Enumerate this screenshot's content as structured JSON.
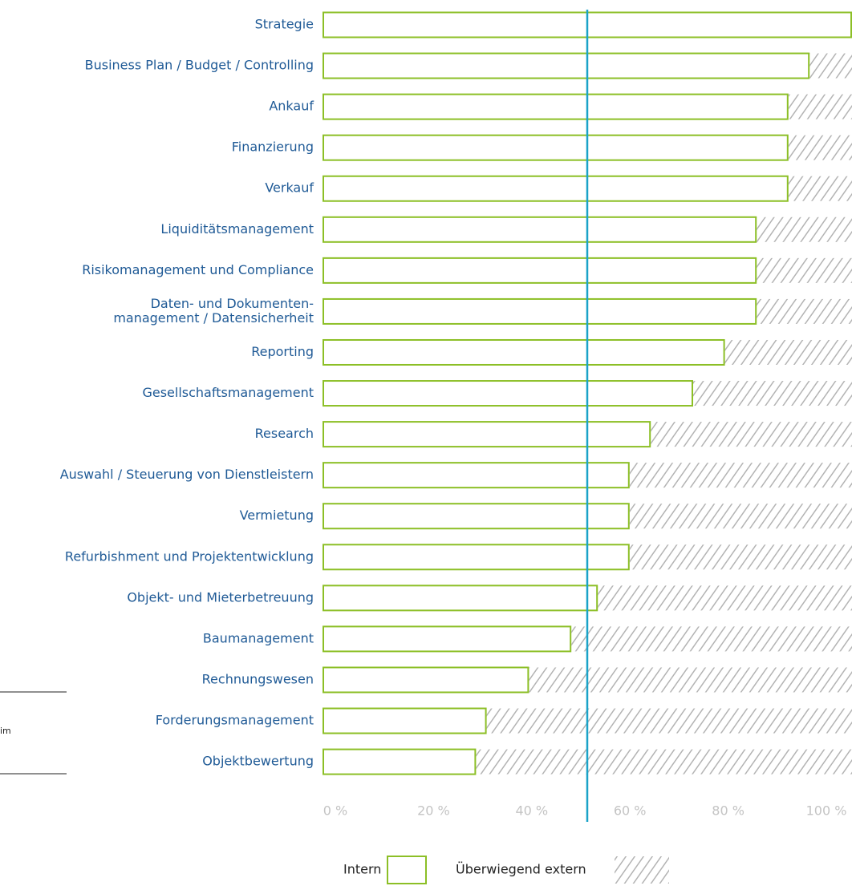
{
  "chart_data": {
    "type": "bar",
    "orientation": "horizontal",
    "stacked": true,
    "categories": [
      "Strategie",
      "Business Plan / Budget / Controlling",
      "Ankauf",
      "Finanzierung",
      "Verkauf",
      "Liquiditätsmanagement",
      "Risikomanagement und Compliance",
      [
        "Daten- und Dokumenten-",
        "management / Datensicherheit"
      ],
      "Reporting",
      "Gesellschaftsmanagement",
      "Research",
      "Auswahl / Steuerung von Dienstleistern",
      "Vermietung",
      "Refurbishment und Projektentwicklung",
      "Objekt- und Mieterbetreuung",
      "Baumanagement",
      "Rechnungswesen",
      "Forderungsmanagement",
      "Objektbewertung"
    ],
    "series": [
      {
        "name": "Intern",
        "color": "#8cbf26",
        "style": "outline",
        "values": [
          100,
          92,
          88,
          88,
          88,
          82,
          82,
          82,
          76,
          70,
          62,
          58,
          58,
          58,
          52,
          47,
          39,
          31,
          29
        ]
      },
      {
        "name": "Überwiegend extern",
        "color": "#b3b3b3",
        "style": "hatch",
        "values": [
          0,
          8,
          12,
          12,
          12,
          18,
          18,
          18,
          24,
          30,
          38,
          42,
          42,
          42,
          48,
          53,
          61,
          69,
          71
        ]
      }
    ],
    "xlim": [
      0,
      100
    ],
    "xticks": [
      {
        "value": 0,
        "label": "0 %"
      },
      {
        "value": 20,
        "label": "20 %"
      },
      {
        "value": 40,
        "label": "40 %"
      },
      {
        "value": 60,
        "label": "60 %"
      },
      {
        "value": 80,
        "label": "80 %"
      },
      {
        "value": 100,
        "label": "100 %"
      }
    ],
    "reference_line": {
      "value": 50,
      "color": "#1aa3c8"
    },
    "annotation": "im"
  }
}
